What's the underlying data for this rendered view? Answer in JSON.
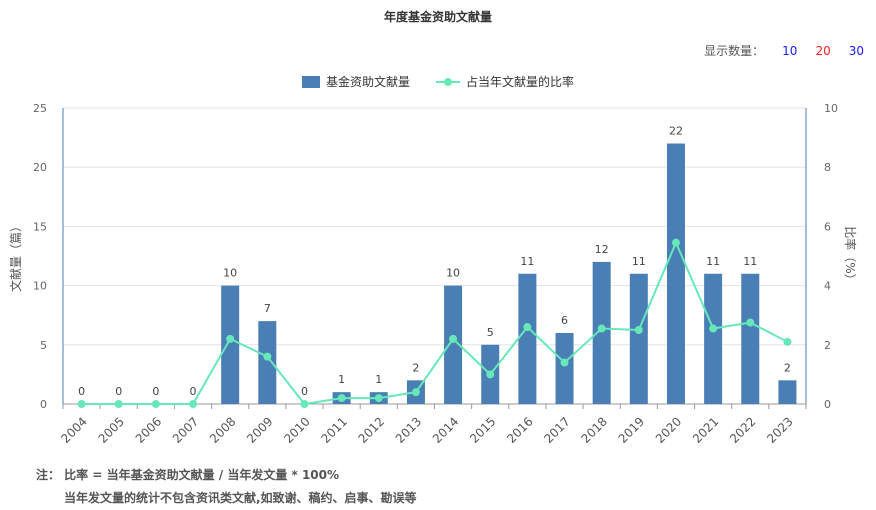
{
  "title": "年度基金资助文献量",
  "display_count": {
    "label": "显示数量：",
    "options": [
      "10",
      "20",
      "30"
    ]
  },
  "chart_data": {
    "type": "bar",
    "title": "年度基金资助文献量",
    "categories": [
      "2004",
      "2005",
      "2006",
      "2007",
      "2008",
      "2009",
      "2010",
      "2011",
      "2012",
      "2013",
      "2014",
      "2015",
      "2016",
      "2017",
      "2018",
      "2019",
      "2020",
      "2021",
      "2022",
      "2023"
    ],
    "series": [
      {
        "name": "基金资助文献量",
        "type": "bar",
        "axis": "left",
        "color": "#4a7fb5",
        "values": [
          0,
          0,
          0,
          0,
          10,
          7,
          0,
          1,
          1,
          2,
          10,
          5,
          11,
          6,
          12,
          11,
          22,
          11,
          11,
          2
        ]
      },
      {
        "name": "占当年文献量的比率",
        "type": "line",
        "axis": "right",
        "color": "#66e8b8",
        "values": [
          0,
          0,
          0,
          0,
          2.2,
          1.6,
          0,
          0.2,
          0.2,
          0.4,
          2.2,
          1.0,
          2.6,
          1.4,
          2.55,
          2.5,
          5.45,
          2.55,
          2.75,
          2.1
        ]
      }
    ],
    "ylabel": "文献量（篇）",
    "y2label": "比率（%）",
    "ylim": [
      0,
      25
    ],
    "y2lim": [
      0,
      10
    ],
    "yticks": [
      0,
      5,
      10,
      15,
      20,
      25
    ],
    "y2ticks": [
      0,
      2,
      4,
      6,
      8,
      10
    ],
    "grid": true,
    "legend_position": "top-center"
  },
  "notes": {
    "line1": "注： 比率 = 当年基金资助文献量 / 当年发文量 * 100%",
    "line2": "当年发文量的统计不包含资讯类文献,如致谢、稿约、启事、勘误等"
  }
}
